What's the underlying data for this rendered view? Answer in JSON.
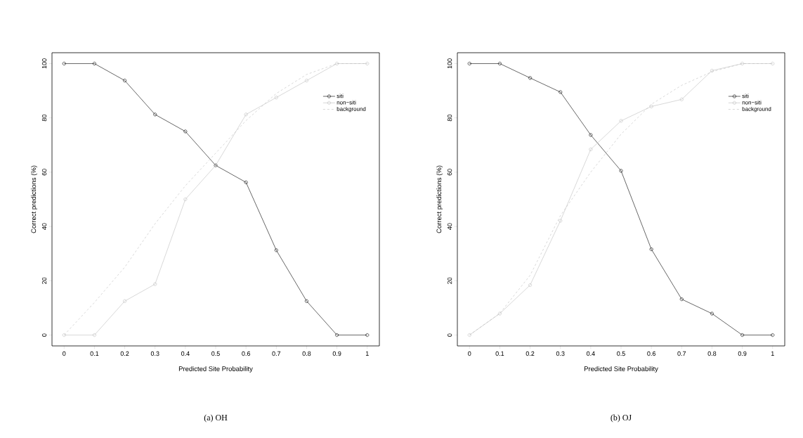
{
  "chart_data": [
    {
      "type": "line",
      "xlabel": "Predicted Site Probability",
      "ylabel": "Correct predictions (%)",
      "annotations": [
        "(a) OH"
      ],
      "x": [
        0,
        0.1,
        0.2,
        0.3,
        0.4,
        0.5,
        0.6,
        0.7,
        0.8,
        0.9,
        1
      ],
      "series": [
        {
          "name": "siti",
          "color": "#000000",
          "marker": "circle",
          "line_style": "solid",
          "values": [
            100,
            100,
            93.75,
            81.25,
            75,
            62.5,
            56.25,
            31.25,
            12.5,
            0,
            0
          ]
        },
        {
          "name": "non−siti",
          "color": "#bebebe",
          "marker": "circle",
          "line_style": "solid",
          "values": [
            0,
            0,
            12.5,
            18.75,
            50,
            62.5,
            81.25,
            87.5,
            93.75,
            100,
            100
          ]
        },
        {
          "name": "background",
          "color": "#bebebe",
          "marker": "none",
          "line_style": "dashed",
          "values": [
            0,
            12,
            25,
            41,
            55,
            67,
            79,
            89,
            96,
            100,
            100
          ]
        }
      ],
      "xlim": [
        -0.04,
        1.04
      ],
      "ylim": [
        -4,
        104
      ],
      "xticks": [
        0,
        0.1,
        0.2,
        0.3,
        0.4,
        0.5,
        0.6,
        0.7,
        0.8,
        0.9,
        1
      ],
      "yticks": [
        0,
        20,
        40,
        60,
        80,
        100
      ],
      "grid": false,
      "legend": "top right"
    },
    {
      "type": "line",
      "xlabel": "Predicted Site Probability",
      "ylabel": "Correct predictions (%)",
      "annotations": [
        "(b) OJ"
      ],
      "x": [
        0,
        0.1,
        0.2,
        0.3,
        0.4,
        0.5,
        0.6,
        0.7,
        0.8,
        0.9,
        1
      ],
      "series": [
        {
          "name": "siti",
          "color": "#000000",
          "marker": "circle",
          "line_style": "solid",
          "values": [
            100,
            100,
            94.7,
            89.5,
            73.7,
            60.5,
            31.6,
            13.2,
            7.9,
            0,
            0
          ]
        },
        {
          "name": "non−siti",
          "color": "#bebebe",
          "marker": "circle",
          "line_style": "solid",
          "values": [
            0,
            7.9,
            18.4,
            42.1,
            68.4,
            78.9,
            84.2,
            86.8,
            97.4,
            100,
            100
          ]
        },
        {
          "name": "background",
          "color": "#bebebe",
          "marker": "none",
          "line_style": "dashed",
          "values": [
            0,
            8,
            22,
            44,
            60,
            74,
            85,
            92,
            97,
            100,
            100
          ]
        }
      ],
      "xlim": [
        -0.04,
        1.04
      ],
      "ylim": [
        -4,
        104
      ],
      "xticks": [
        0,
        0.1,
        0.2,
        0.3,
        0.4,
        0.5,
        0.6,
        0.7,
        0.8,
        0.9,
        1
      ],
      "yticks": [
        0,
        20,
        40,
        60,
        80,
        100
      ],
      "grid": false,
      "legend": "top right"
    }
  ]
}
